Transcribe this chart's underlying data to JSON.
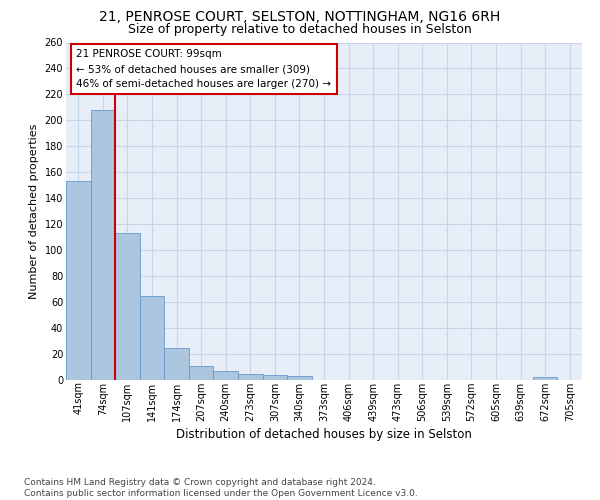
{
  "title1": "21, PENROSE COURT, SELSTON, NOTTINGHAM, NG16 6RH",
  "title2": "Size of property relative to detached houses in Selston",
  "xlabel": "Distribution of detached houses by size in Selston",
  "ylabel": "Number of detached properties",
  "footnote": "Contains HM Land Registry data © Crown copyright and database right 2024.\nContains public sector information licensed under the Open Government Licence v3.0.",
  "bar_labels": [
    "41sqm",
    "74sqm",
    "107sqm",
    "141sqm",
    "174sqm",
    "207sqm",
    "240sqm",
    "273sqm",
    "307sqm",
    "340sqm",
    "373sqm",
    "406sqm",
    "439sqm",
    "473sqm",
    "506sqm",
    "539sqm",
    "572sqm",
    "605sqm",
    "639sqm",
    "672sqm",
    "705sqm"
  ],
  "bar_values": [
    153,
    208,
    113,
    65,
    25,
    11,
    7,
    5,
    4,
    3,
    0,
    0,
    0,
    0,
    0,
    0,
    0,
    0,
    0,
    2,
    0
  ],
  "bar_color": "#adc6e0",
  "bar_edge_color": "#6699cc",
  "vline_x": 1.5,
  "vline_color": "#cc0000",
  "box_edge_color": "#cc0000",
  "annotation_box_text": "21 PENROSE COURT: 99sqm\n← 53% of detached houses are smaller (309)\n46% of semi-detached houses are larger (270) →",
  "grid_color": "#c8d4e8",
  "bg_color": "#e8eef8",
  "ylim": [
    0,
    260
  ],
  "yticks": [
    0,
    20,
    40,
    60,
    80,
    100,
    120,
    140,
    160,
    180,
    200,
    220,
    240,
    260
  ],
  "title1_fontsize": 10,
  "title2_fontsize": 9,
  "ylabel_fontsize": 8,
  "xlabel_fontsize": 8.5,
  "footnote_fontsize": 6.5,
  "tick_fontsize": 7
}
